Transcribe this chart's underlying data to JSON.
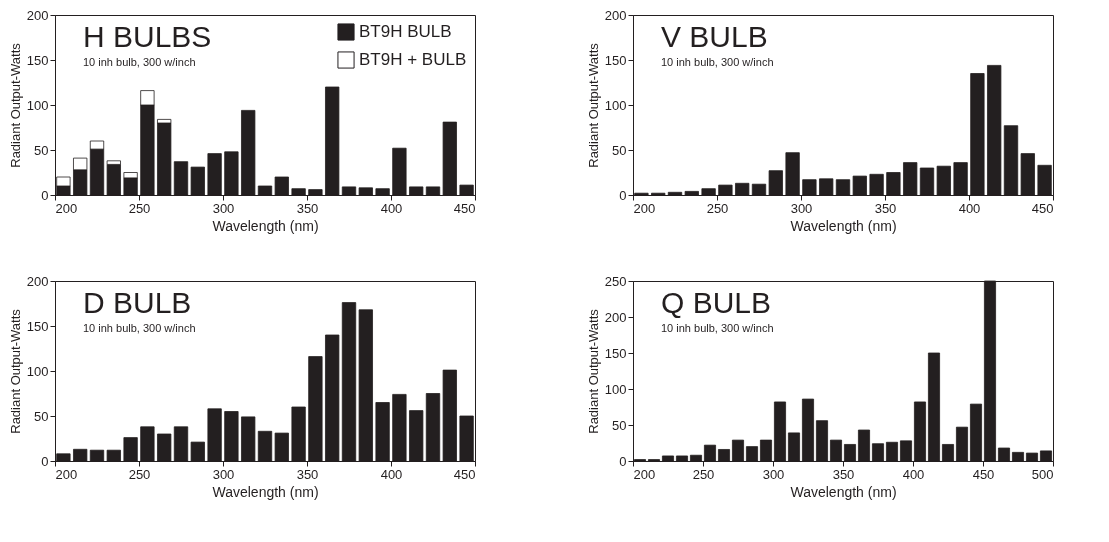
{
  "chart_data": [
    {
      "type": "bar",
      "title": "H BULBS",
      "subtitle": "10 inh bulb, 300 w/inch",
      "xlabel": "Wavelength (nm)",
      "ylabel": "Radiant Output-Watts",
      "x": [
        205,
        215,
        225,
        235,
        245,
        255,
        265,
        275,
        285,
        295,
        305,
        315,
        325,
        335,
        345,
        355,
        365,
        375,
        385,
        395,
        405,
        415,
        425,
        435,
        445
      ],
      "series": [
        {
          "name": "BT9H BULB",
          "color": "#231f20",
          "values": [
            10,
            28,
            51,
            34,
            19,
            100,
            80,
            37,
            31,
            46,
            48,
            94,
            10,
            20,
            7,
            6,
            120,
            9,
            8,
            7,
            52,
            9,
            9,
            81,
            11
          ]
        },
        {
          "name": "BT9H + BULB",
          "color": "#ffffff",
          "values": [
            10,
            13,
            9,
            4,
            6,
            16,
            4,
            null,
            null,
            null,
            null,
            null,
            null,
            null,
            null,
            null,
            null,
            null,
            null,
            null,
            null,
            null,
            null,
            null,
            null
          ]
        }
      ],
      "stacked": true,
      "xlim": [
        200,
        450
      ],
      "xticks": [
        200,
        250,
        300,
        350,
        400,
        450
      ],
      "ylim": [
        0,
        200
      ],
      "yticks": [
        0,
        50,
        100,
        150,
        200
      ],
      "grid": false,
      "legend": "top right"
    },
    {
      "type": "bar",
      "title": "V BULB",
      "subtitle": "10 inh bulb, 300 w/inch",
      "xlabel": "Wavelength (nm)",
      "ylabel": "Radiant Output-Watts",
      "x": [
        205,
        215,
        225,
        235,
        245,
        255,
        265,
        275,
        285,
        295,
        305,
        315,
        325,
        335,
        345,
        355,
        365,
        375,
        385,
        395,
        405,
        415,
        425,
        435,
        445
      ],
      "series": [
        {
          "color": "#231f20",
          "values": [
            2,
            2,
            3,
            4,
            7,
            11,
            13,
            12,
            27,
            47,
            17,
            18,
            17,
            21,
            23,
            25,
            36,
            30,
            32,
            36,
            135,
            144,
            77,
            46,
            33
          ]
        }
      ],
      "xlim": [
        200,
        450
      ],
      "xticks": [
        200,
        250,
        300,
        350,
        400,
        450
      ],
      "ylim": [
        0,
        200
      ],
      "yticks": [
        0,
        50,
        100,
        150,
        200
      ],
      "grid": false
    },
    {
      "type": "bar",
      "title": "D BULB",
      "subtitle": "10 inh bulb, 300 w/inch",
      "xlabel": "Wavelength (nm)",
      "ylabel": "Radiant Output-Watts",
      "x": [
        205,
        215,
        225,
        235,
        245,
        255,
        265,
        275,
        285,
        295,
        305,
        315,
        325,
        335,
        345,
        355,
        365,
        375,
        385,
        395,
        405,
        415,
        425,
        435,
        445
      ],
      "series": [
        {
          "color": "#231f20",
          "values": [
            8,
            13,
            12,
            12,
            26,
            38,
            30,
            38,
            21,
            58,
            55,
            49,
            33,
            31,
            60,
            116,
            140,
            176,
            168,
            65,
            74,
            56,
            75,
            101,
            50
          ]
        }
      ],
      "xlim": [
        200,
        450
      ],
      "xticks": [
        200,
        250,
        300,
        350,
        400,
        450
      ],
      "ylim": [
        0,
        200
      ],
      "yticks": [
        0,
        50,
        100,
        150,
        200
      ],
      "grid": false
    },
    {
      "type": "bar",
      "title": "Q BULB",
      "subtitle": "10 inh bulb, 300 w/inch",
      "xlabel": "Wavelength (nm)",
      "ylabel": "Radiant Output-Watts",
      "x": [
        205,
        215,
        225,
        235,
        245,
        255,
        265,
        275,
        285,
        295,
        305,
        315,
        325,
        335,
        345,
        355,
        365,
        375,
        385,
        395,
        405,
        415,
        425,
        435,
        445,
        455,
        465,
        475,
        485,
        495
      ],
      "series": [
        {
          "color": "#231f20",
          "values": [
            2,
            2,
            7,
            7,
            8,
            22,
            16,
            29,
            20,
            29,
            82,
            39,
            86,
            56,
            29,
            23,
            43,
            24,
            26,
            28,
            82,
            150,
            23,
            47,
            79,
            250,
            18,
            12,
            11,
            14
          ]
        }
      ],
      "xlim": [
        200,
        500
      ],
      "xticks": [
        200,
        250,
        300,
        350,
        400,
        450,
        500
      ],
      "ylim": [
        0,
        250
      ],
      "yticks": [
        0,
        50,
        100,
        150,
        200,
        250
      ],
      "grid": false
    }
  ]
}
